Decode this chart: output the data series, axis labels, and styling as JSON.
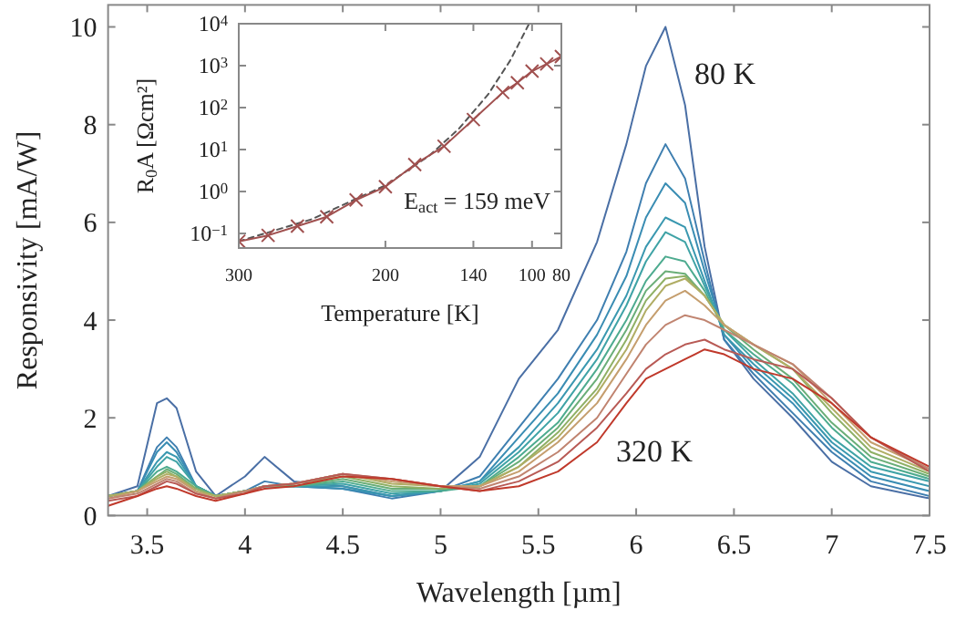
{
  "chart_data": [
    {
      "type": "line",
      "xlabel": "Wavelength [µm]",
      "ylabel": "Responsivity [mA/W]",
      "xlim": [
        3.3,
        7.5
      ],
      "ylim": [
        0,
        10.45
      ],
      "xticks": [
        3.5,
        4,
        4.5,
        5,
        5.5,
        6,
        6.5,
        7,
        7.5
      ],
      "yticks": [
        0,
        2,
        4,
        6,
        8,
        10
      ],
      "marker": "none",
      "line_style": "solid",
      "annotations": [
        "80 K",
        "320 K"
      ],
      "x": [
        3.3,
        3.45,
        3.55,
        3.6,
        3.65,
        3.75,
        3.85,
        4.0,
        4.1,
        4.25,
        4.5,
        4.75,
        5.0,
        5.2,
        5.4,
        5.6,
        5.8,
        5.95,
        6.05,
        6.15,
        6.25,
        6.35,
        6.45,
        6.6,
        6.8,
        7.0,
        7.2,
        7.5
      ],
      "series": [
        {
          "color": "#4a6fa5",
          "values": [
            0.4,
            0.6,
            2.3,
            2.4,
            2.2,
            0.9,
            0.4,
            0.8,
            1.2,
            0.7,
            0.6,
            0.4,
            0.5,
            1.2,
            2.8,
            3.8,
            5.6,
            7.6,
            9.2,
            10.0,
            8.4,
            5.5,
            3.6,
            2.8,
            2.0,
            1.1,
            0.6,
            0.35
          ]
        },
        {
          "color": "#3f7fb0",
          "values": [
            0.4,
            0.5,
            1.4,
            1.6,
            1.4,
            0.6,
            0.4,
            0.5,
            0.7,
            0.6,
            0.55,
            0.35,
            0.5,
            0.8,
            1.8,
            2.8,
            4.0,
            5.4,
            6.8,
            7.6,
            6.9,
            5.2,
            3.6,
            2.9,
            2.1,
            1.3,
            0.7,
            0.4
          ]
        },
        {
          "color": "#3a8db3",
          "values": [
            0.4,
            0.5,
            1.3,
            1.5,
            1.3,
            0.6,
            0.4,
            0.5,
            0.6,
            0.6,
            0.55,
            0.4,
            0.5,
            0.7,
            1.6,
            2.5,
            3.7,
            4.9,
            6.1,
            6.8,
            6.4,
            5.0,
            3.7,
            3.0,
            2.3,
            1.4,
            0.8,
            0.5
          ]
        },
        {
          "color": "#3a98b0",
          "values": [
            0.4,
            0.5,
            1.1,
            1.3,
            1.2,
            0.6,
            0.4,
            0.5,
            0.6,
            0.6,
            0.6,
            0.4,
            0.5,
            0.7,
            1.4,
            2.3,
            3.4,
            4.5,
            5.5,
            6.1,
            5.9,
            4.8,
            3.7,
            3.1,
            2.4,
            1.5,
            0.9,
            0.6
          ]
        },
        {
          "color": "#3fa3a6",
          "values": [
            0.4,
            0.5,
            1.0,
            1.2,
            1.1,
            0.6,
            0.4,
            0.5,
            0.6,
            0.6,
            0.65,
            0.45,
            0.5,
            0.65,
            1.3,
            2.1,
            3.2,
            4.3,
            5.2,
            5.8,
            5.6,
            4.7,
            3.8,
            3.2,
            2.5,
            1.6,
            1.0,
            0.7
          ]
        },
        {
          "color": "#4dab8f",
          "values": [
            0.4,
            0.5,
            0.9,
            1.0,
            0.9,
            0.6,
            0.4,
            0.5,
            0.6,
            0.6,
            0.7,
            0.5,
            0.5,
            0.6,
            1.2,
            1.9,
            3.0,
            4.0,
            4.8,
            5.3,
            5.2,
            4.6,
            3.8,
            3.3,
            2.7,
            1.8,
            1.1,
            0.75
          ]
        },
        {
          "color": "#6aae78",
          "values": [
            0.4,
            0.5,
            0.8,
            0.95,
            0.85,
            0.55,
            0.4,
            0.5,
            0.6,
            0.6,
            0.75,
            0.55,
            0.55,
            0.6,
            1.1,
            1.8,
            2.8,
            3.8,
            4.6,
            5.0,
            4.95,
            4.5,
            3.9,
            3.4,
            2.8,
            1.9,
            1.2,
            0.8
          ]
        },
        {
          "color": "#8fb065",
          "values": [
            0.4,
            0.5,
            0.8,
            0.9,
            0.8,
            0.55,
            0.4,
            0.5,
            0.6,
            0.65,
            0.8,
            0.6,
            0.55,
            0.6,
            1.0,
            1.7,
            2.6,
            3.6,
            4.4,
            4.85,
            4.9,
            4.5,
            3.9,
            3.5,
            3.0,
            2.1,
            1.3,
            0.85
          ]
        },
        {
          "color": "#b0ad64",
          "values": [
            0.4,
            0.5,
            0.75,
            0.85,
            0.8,
            0.5,
            0.4,
            0.5,
            0.6,
            0.65,
            0.85,
            0.65,
            0.6,
            0.6,
            1.0,
            1.6,
            2.5,
            3.4,
            4.2,
            4.7,
            4.85,
            4.5,
            3.9,
            3.5,
            3.0,
            2.2,
            1.4,
            0.9
          ]
        },
        {
          "color": "#c59e6e",
          "values": [
            0.35,
            0.5,
            0.7,
            0.8,
            0.75,
            0.5,
            0.35,
            0.5,
            0.6,
            0.65,
            0.85,
            0.7,
            0.6,
            0.6,
            0.9,
            1.5,
            2.3,
            3.2,
            3.9,
            4.4,
            4.6,
            4.3,
            3.9,
            3.5,
            3.1,
            2.3,
            1.5,
            0.95
          ]
        },
        {
          "color": "#c08470",
          "values": [
            0.35,
            0.45,
            0.65,
            0.75,
            0.7,
            0.45,
            0.35,
            0.5,
            0.6,
            0.65,
            0.85,
            0.75,
            0.6,
            0.55,
            0.8,
            1.3,
            2.0,
            2.9,
            3.5,
            3.9,
            4.1,
            4.0,
            3.8,
            3.5,
            3.1,
            2.4,
            1.6,
            0.95
          ]
        },
        {
          "color": "#b85a55",
          "values": [
            0.3,
            0.4,
            0.6,
            0.7,
            0.65,
            0.45,
            0.35,
            0.45,
            0.6,
            0.65,
            0.85,
            0.75,
            0.6,
            0.5,
            0.7,
            1.1,
            1.8,
            2.5,
            3.0,
            3.3,
            3.5,
            3.6,
            3.4,
            3.2,
            3.0,
            2.4,
            1.6,
            0.9
          ]
        },
        {
          "color": "#c0392b",
          "values": [
            0.2,
            0.4,
            0.55,
            0.6,
            0.55,
            0.4,
            0.3,
            0.45,
            0.55,
            0.6,
            0.8,
            0.75,
            0.6,
            0.5,
            0.6,
            0.9,
            1.5,
            2.3,
            2.8,
            3.0,
            3.2,
            3.4,
            3.3,
            3.0,
            2.8,
            2.3,
            1.6,
            1.0
          ]
        }
      ]
    },
    {
      "type": "line",
      "xlabel": "Temperature [K]",
      "ylabel": "R$_{0}$A [Ωcm²]",
      "log": "y",
      "xlim": [
        300,
        80
      ],
      "ylim": [
        0.045,
        10000
      ],
      "xticks": [
        300,
        200,
        140,
        100,
        80
      ],
      "yticks": [
        {
          "value": 0.1,
          "label": "10$^{−1}$"
        },
        {
          "value": 1,
          "label": "10$^{0}$"
        },
        {
          "value": 10,
          "label": "10$^{1}$"
        },
        {
          "value": 100,
          "label": "10$^{2}$"
        },
        {
          "value": 1000,
          "label": "10$^{3}$"
        },
        {
          "value": 10000,
          "label": "10$^{4}$"
        }
      ],
      "annotations": [
        "E$_{act}$ = 159 meV"
      ],
      "series": [
        {
          "color": "#555555",
          "line_style": "dashed",
          "marker": "none",
          "x": [
            300,
            250,
            200,
            170,
            150,
            130,
            115,
            102
          ],
          "values": [
            0.065,
            0.22,
            1.4,
            7.2,
            31,
            205,
            1310,
            10000
          ]
        },
        {
          "color": "#a0504f",
          "line_style": "solid",
          "marker": "cross",
          "x": [
            300,
            280,
            260,
            240,
            220,
            200,
            180,
            160,
            140,
            120,
            110,
            100,
            90,
            80
          ],
          "values": [
            0.065,
            0.09,
            0.15,
            0.25,
            0.63,
            1.3,
            4.4,
            12,
            52,
            230,
            390,
            740,
            1100,
            1650
          ]
        }
      ]
    }
  ]
}
